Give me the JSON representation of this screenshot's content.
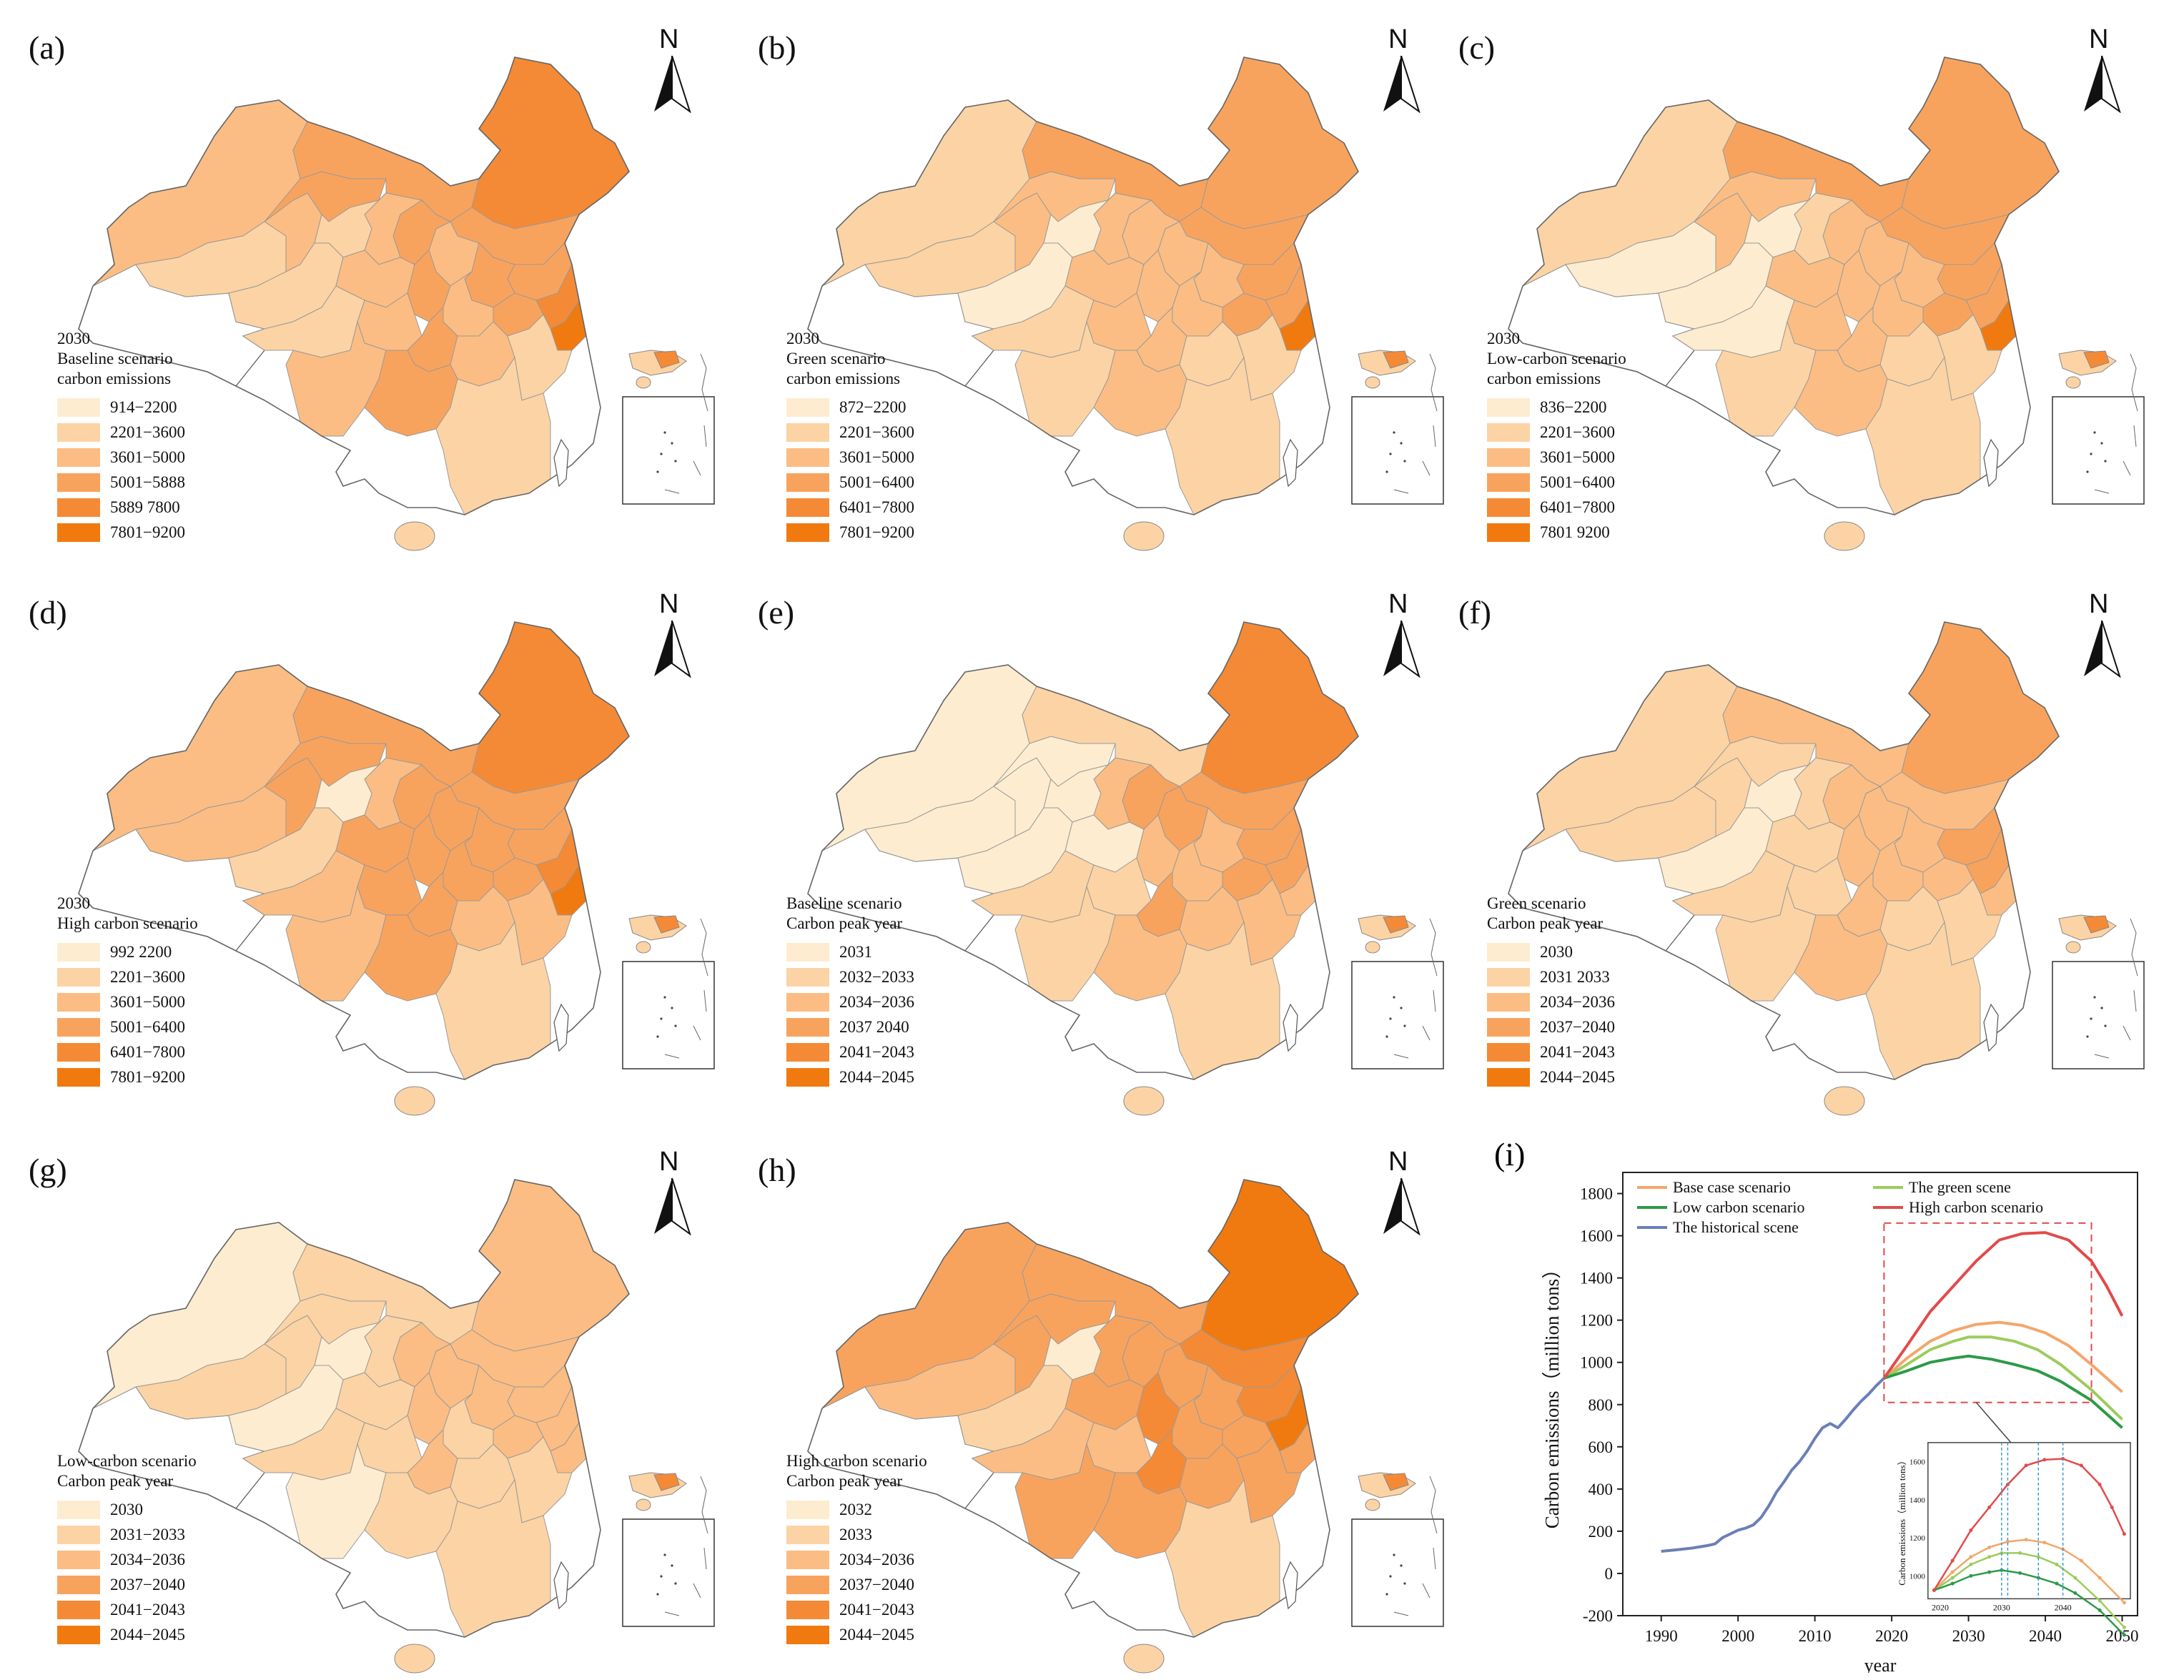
{
  "north_label": "N",
  "map_colors": [
    "#fdeccf",
    "#fcd3a4",
    "#fbbd83",
    "#f8a35d",
    "#f48a35",
    "#f07a10"
  ],
  "panels": [
    {
      "label": "(a)",
      "legend_title": [
        "2030",
        "Baseline scenario",
        "carbon emissions"
      ],
      "legend": [
        "914−2200",
        "2201−3600",
        "3601−5000",
        "5001−5888",
        "5889  7800",
        "7801−9200"
      ],
      "region_classes": [
        2,
        1,
        2,
        3,
        3,
        4,
        3,
        2,
        3,
        2,
        1,
        3,
        3,
        1,
        2,
        4,
        3,
        3,
        2,
        5,
        1,
        2,
        3,
        2,
        1,
        2,
        3
      ]
    },
    {
      "label": "(b)",
      "legend_title": [
        "2030",
        "Green scenario",
        "carbon emissions"
      ],
      "legend": [
        "872−2200",
        "2201−3600",
        "3601−5000",
        "5001−6400",
        "6401−7800",
        "7801−9200"
      ],
      "region_classes": [
        1,
        1,
        2,
        2,
        3,
        3,
        3,
        2,
        2,
        2,
        0,
        3,
        2,
        0,
        2,
        3,
        3,
        2,
        2,
        5,
        1,
        2,
        2,
        1,
        1,
        1,
        2
      ]
    },
    {
      "label": "(c)",
      "legend_title": [
        "2030",
        "Low-carbon scenario",
        "carbon emissions"
      ],
      "legend": [
        "836−2200",
        "2201−3600",
        "3601−5000",
        "5001−6400",
        "6401−7800",
        "7801  9200"
      ],
      "region_classes": [
        1,
        0,
        2,
        2,
        3,
        3,
        3,
        2,
        2,
        1,
        0,
        3,
        2,
        0,
        2,
        3,
        3,
        2,
        2,
        5,
        0,
        2,
        2,
        1,
        1,
        1,
        2
      ]
    },
    {
      "label": "(d)",
      "legend_title": [
        "2030",
        "High carbon scenario"
      ],
      "legend": [
        "992  2200",
        "2201−3600",
        "3601−5000",
        "5001−6400",
        "6401−7800",
        "7801−9200"
      ],
      "region_classes": [
        2,
        2,
        3,
        3,
        3,
        4,
        3,
        3,
        3,
        2,
        0,
        3,
        3,
        1,
        3,
        4,
        3,
        3,
        3,
        5,
        2,
        3,
        3,
        2,
        2,
        2,
        3
      ]
    },
    {
      "label": "(e)",
      "legend_title": [
        "Baseline scenario",
        "Carbon peak year"
      ],
      "legend": [
        "2031",
        "2032−2033",
        "2034−2036",
        "2037  2040",
        "2041−2043",
        "2044−2045"
      ],
      "region_classes": [
        0,
        0,
        0,
        0,
        1,
        4,
        3,
        3,
        3,
        2,
        0,
        3,
        2,
        0,
        0,
        3,
        3,
        2,
        2,
        2,
        1,
        1,
        3,
        2,
        2,
        1,
        2
      ]
    },
    {
      "label": "(f)",
      "legend_title": [
        "Green scenario",
        "Carbon peak year"
      ],
      "legend": [
        "2030",
        "2031  2033",
        "2034−2036",
        "2037−2040",
        "2041−2043",
        "2044−2045"
      ],
      "region_classes": [
        1,
        1,
        1,
        1,
        2,
        3,
        2,
        2,
        2,
        1,
        0,
        3,
        2,
        0,
        1,
        3,
        2,
        2,
        2,
        2,
        1,
        1,
        2,
        1,
        1,
        1,
        2
      ]
    },
    {
      "label": "(g)",
      "legend_title": [
        "Low-carbon scenario",
        "Carbon peak year"
      ],
      "legend": [
        "2030",
        "2031−2033",
        "2034−2036",
        "2037−2040",
        "2041−2043",
        "2044−2045"
      ],
      "region_classes": [
        0,
        1,
        1,
        1,
        1,
        2,
        2,
        2,
        2,
        1,
        0,
        2,
        2,
        0,
        1,
        2,
        2,
        2,
        1,
        2,
        1,
        1,
        2,
        1,
        1,
        0,
        1
      ]
    },
    {
      "label": "(h)",
      "legend_title": [
        "High carbon scenario",
        "Carbon peak year"
      ],
      "legend": [
        "2032",
        "2033",
        "2034−2036",
        "2037−2040",
        "2041−2043",
        "2044−2045"
      ],
      "region_classes": [
        3,
        2,
        3,
        3,
        3,
        5,
        4,
        3,
        3,
        3,
        0,
        4,
        3,
        1,
        3,
        5,
        3,
        4,
        3,
        3,
        2,
        2,
        4,
        3,
        3,
        3,
        3
      ]
    }
  ],
  "chart": {
    "label": "(i)",
    "ylabel": "Carbon emissions（million tons）",
    "xlabel": "year",
    "xticks": [
      1990,
      2000,
      2010,
      2020,
      2030,
      2040,
      2050
    ],
    "yticks": [
      -200,
      0,
      200,
      400,
      600,
      800,
      1000,
      1200,
      1400,
      1600,
      1800
    ],
    "legend": [
      {
        "name": "Base case scenario",
        "color": "#f3a66a"
      },
      {
        "name": "The green scene",
        "color": "#9ccc5c"
      },
      {
        "name": "Low carbon scenario",
        "color": "#2d9a48"
      },
      {
        "name": "High carbon scenario",
        "color": "#e24b4b"
      },
      {
        "name": "The historical scene",
        "color": "#6a7fb8"
      }
    ],
    "inset_ylabel": "Carbon emissions（million tons）",
    "inset_xticks": [
      2020,
      2030,
      2040
    ],
    "inset_yticks": [
      1000,
      1200,
      1400,
      1600
    ]
  },
  "chart_data": {
    "type": "line",
    "title": "",
    "xlabel": "year",
    "ylabel": "Carbon emissions（million tons）",
    "xlim": [
      1985,
      2052
    ],
    "ylim": [
      -200,
      1900
    ],
    "series": [
      {
        "name": "The historical scene",
        "color": "#6a7fb8",
        "x": [
          1990,
          1992,
          1994,
          1996,
          1997,
          1998,
          2000,
          2001,
          2002,
          2003,
          2004,
          2005,
          2006,
          2007,
          2008,
          2009,
          2010,
          2011,
          2012,
          2013,
          2014,
          2015,
          2016,
          2017,
          2018,
          2019
        ],
        "y": [
          105,
          112,
          120,
          132,
          140,
          170,
          205,
          215,
          230,
          265,
          320,
          385,
          435,
          490,
          530,
          580,
          640,
          690,
          710,
          690,
          730,
          775,
          815,
          850,
          890,
          925
        ]
      },
      {
        "name": "Base case scenario",
        "color": "#f3a66a",
        "x": [
          2019,
          2022,
          2025,
          2028,
          2031,
          2034,
          2037,
          2040,
          2043,
          2046,
          2050
        ],
        "y": [
          925,
          1020,
          1100,
          1150,
          1180,
          1190,
          1175,
          1140,
          1080,
          990,
          860
        ]
      },
      {
        "name": "The green scene",
        "color": "#9ccc5c",
        "x": [
          2019,
          2022,
          2025,
          2028,
          2030,
          2033,
          2036,
          2039,
          2042,
          2046,
          2050
        ],
        "y": [
          925,
          990,
          1060,
          1100,
          1120,
          1120,
          1100,
          1060,
          990,
          870,
          730
        ]
      },
      {
        "name": "Low carbon scenario",
        "color": "#2d9a48",
        "x": [
          2019,
          2022,
          2025,
          2028,
          2030,
          2033,
          2036,
          2039,
          2042,
          2046,
          2050
        ],
        "y": [
          925,
          960,
          1000,
          1020,
          1030,
          1015,
          990,
          960,
          910,
          820,
          690
        ]
      },
      {
        "name": "High carbon scenario",
        "color": "#e24b4b",
        "x": [
          2019,
          2022,
          2025,
          2028,
          2031,
          2034,
          2037,
          2040,
          2043,
          2046,
          2048,
          2050
        ],
        "y": [
          925,
          1080,
          1240,
          1360,
          1480,
          1580,
          1610,
          1615,
          1580,
          1480,
          1360,
          1220
        ]
      }
    ]
  }
}
